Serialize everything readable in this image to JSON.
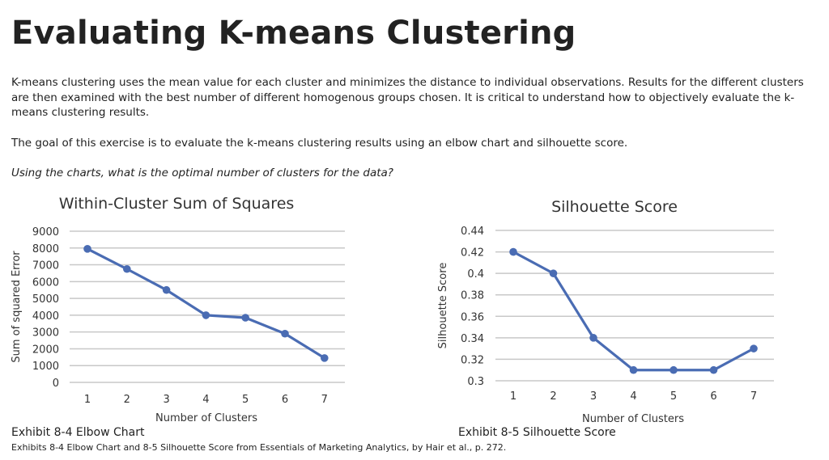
{
  "page": {
    "title": "Evaluating K-means Clustering",
    "paragraph1": "K-means clustering uses the mean value for each cluster and minimizes the distance to individual observations. Results for the different clusters are then examined with the best number of different homogenous groups chosen.  It is critical to understand how to objectively evaluate the k-means clustering results.",
    "paragraph2": "The goal of this exercise is to evaluate the k-means clustering results using an elbow chart and silhouette score.",
    "question": "Using the charts, what is the optimal number of clusters for the data?",
    "caption_left": "Exhibit 8-4 Elbow Chart",
    "caption_right": "Exhibit 8-5 Silhouette Score",
    "source": "Exhibits 8-4 Elbow Chart and 8-5 Silhouette Score from Essentials of Marketing Analytics, by Hair et al., p. 272."
  },
  "chart_data": [
    {
      "type": "line",
      "title": "Within-Cluster Sum of Squares",
      "xlabel": "Number of Clusters",
      "ylabel": "Sum of squared Error",
      "x": [
        1,
        2,
        3,
        4,
        5,
        6,
        7
      ],
      "values": [
        7950,
        6750,
        5500,
        4000,
        3850,
        2900,
        1450
      ],
      "y_ticks": [
        "9000",
        "8000",
        "7000",
        "6000",
        "5000",
        "4000",
        "3000",
        "2000",
        "1000",
        "0"
      ],
      "ylim": [
        0,
        9000
      ],
      "grid": true,
      "color": "#4a6cb3"
    },
    {
      "type": "line",
      "title": "Silhouette Score",
      "xlabel": "Number of Clusters",
      "ylabel": "Silhouette Score",
      "x": [
        1,
        2,
        3,
        4,
        5,
        6,
        7
      ],
      "values": [
        0.42,
        0.4,
        0.34,
        0.31,
        0.31,
        0.31,
        0.33
      ],
      "y_ticks": [
        "0.44",
        "0.42",
        "0.4",
        "0.38",
        "0.36",
        "0.34",
        "0.32",
        "0.3"
      ],
      "ylim": [
        0.3,
        0.44
      ],
      "grid": true,
      "color": "#4a6cb3"
    }
  ]
}
